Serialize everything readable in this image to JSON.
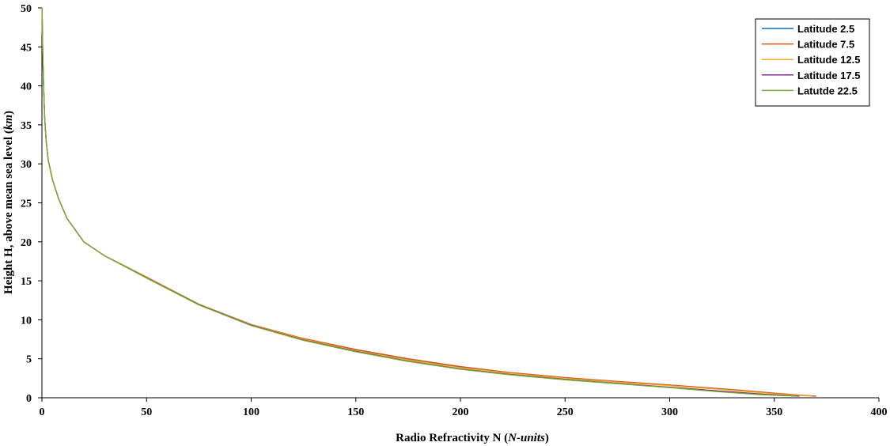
{
  "chart_data": {
    "type": "line",
    "title": "",
    "xlabel": {
      "main": "Radio Refractivity N (",
      "unit": "N-units",
      "close": ")"
    },
    "ylabel": {
      "main": "Height H, above mean sea level (",
      "unit": "km",
      "close": ")"
    },
    "xlim": [
      0,
      400
    ],
    "ylim": [
      0,
      50
    ],
    "xticks": [
      0,
      50,
      100,
      150,
      200,
      250,
      300,
      350,
      400
    ],
    "yticks": [
      0,
      5,
      10,
      15,
      20,
      25,
      30,
      35,
      40,
      45,
      50
    ],
    "grid": false,
    "legend_position": "top-right",
    "series": [
      {
        "name": "Latitude 2.5",
        "color": "#0072BD",
        "points": [
          [
            370,
            0.2
          ],
          [
            352,
            0.5
          ],
          [
            330,
            1.0
          ],
          [
            300,
            1.6
          ],
          [
            275,
            2.0
          ],
          [
            250,
            2.5
          ],
          [
            225,
            3.1
          ],
          [
            200,
            3.9
          ],
          [
            175,
            4.9
          ],
          [
            150,
            6.1
          ],
          [
            125,
            7.5
          ],
          [
            100,
            9.4
          ],
          [
            75,
            12.0
          ],
          [
            50,
            15.5
          ],
          [
            30,
            18.2
          ],
          [
            20,
            20.0
          ],
          [
            12,
            23.0
          ],
          [
            8,
            25.5
          ],
          [
            5,
            28.0
          ],
          [
            3,
            30.5
          ],
          [
            2,
            33.0
          ],
          [
            1.3,
            36.0
          ],
          [
            0.8,
            40.0
          ],
          [
            0.5,
            43.0
          ],
          [
            0.2,
            47.0
          ],
          [
            0.1,
            50.0
          ]
        ]
      },
      {
        "name": "Latitude 7.5",
        "color": "#D95319",
        "points": [
          [
            370,
            0.2
          ],
          [
            352,
            0.55
          ],
          [
            330,
            1.05
          ],
          [
            300,
            1.65
          ],
          [
            275,
            2.1
          ],
          [
            250,
            2.6
          ],
          [
            225,
            3.2
          ],
          [
            200,
            4.0
          ],
          [
            175,
            5.0
          ],
          [
            150,
            6.2
          ],
          [
            125,
            7.6
          ],
          [
            100,
            9.4
          ],
          [
            75,
            12.0
          ],
          [
            50,
            15.5
          ],
          [
            30,
            18.2
          ],
          [
            20,
            20.0
          ],
          [
            12,
            23.0
          ],
          [
            8,
            25.5
          ],
          [
            5,
            28.0
          ],
          [
            3,
            30.5
          ],
          [
            2,
            33.0
          ],
          [
            1.3,
            36.0
          ],
          [
            0.8,
            40.0
          ],
          [
            0.5,
            43.0
          ],
          [
            0.2,
            47.0
          ],
          [
            0.1,
            50.0
          ]
        ]
      },
      {
        "name": "Latitude 12.5",
        "color": "#EDB120",
        "points": [
          [
            368,
            0.2
          ],
          [
            350,
            0.5
          ],
          [
            330,
            0.95
          ],
          [
            300,
            1.55
          ],
          [
            275,
            2.0
          ],
          [
            250,
            2.5
          ],
          [
            225,
            3.1
          ],
          [
            200,
            3.85
          ],
          [
            175,
            4.85
          ],
          [
            150,
            6.05
          ],
          [
            125,
            7.5
          ],
          [
            100,
            9.35
          ],
          [
            75,
            12.0
          ],
          [
            50,
            15.5
          ],
          [
            30,
            18.2
          ],
          [
            20,
            20.0
          ],
          [
            12,
            23.0
          ],
          [
            8,
            25.5
          ],
          [
            5,
            28.0
          ],
          [
            3,
            30.5
          ],
          [
            2,
            33.0
          ],
          [
            1.3,
            36.0
          ],
          [
            0.8,
            40.0
          ],
          [
            0.5,
            43.0
          ],
          [
            0.2,
            47.0
          ],
          [
            0.1,
            50.0
          ]
        ]
      },
      {
        "name": "Latitude 17.5",
        "color": "#7E2F8E",
        "points": [
          [
            362,
            0.2
          ],
          [
            345,
            0.45
          ],
          [
            325,
            0.85
          ],
          [
            300,
            1.35
          ],
          [
            275,
            1.85
          ],
          [
            250,
            2.35
          ],
          [
            225,
            2.95
          ],
          [
            200,
            3.7
          ],
          [
            175,
            4.7
          ],
          [
            150,
            5.95
          ],
          [
            125,
            7.4
          ],
          [
            100,
            9.3
          ],
          [
            75,
            11.95
          ],
          [
            50,
            15.4
          ],
          [
            30,
            18.2
          ],
          [
            20,
            20.0
          ],
          [
            12,
            23.0
          ],
          [
            8,
            25.5
          ],
          [
            5,
            28.0
          ],
          [
            3,
            30.5
          ],
          [
            2,
            33.0
          ],
          [
            1.3,
            36.0
          ],
          [
            0.8,
            40.0
          ],
          [
            0.5,
            43.0
          ],
          [
            0.2,
            47.0
          ],
          [
            0.1,
            50.0
          ]
        ]
      },
      {
        "name": "Latutde 22.5",
        "color": "#77AC30",
        "points": [
          [
            360,
            0.2
          ],
          [
            343,
            0.4
          ],
          [
            322,
            0.8
          ],
          [
            300,
            1.3
          ],
          [
            275,
            1.8
          ],
          [
            250,
            2.3
          ],
          [
            225,
            2.9
          ],
          [
            200,
            3.65
          ],
          [
            175,
            4.65
          ],
          [
            150,
            5.9
          ],
          [
            125,
            7.35
          ],
          [
            100,
            9.25
          ],
          [
            75,
            11.9
          ],
          [
            50,
            15.35
          ],
          [
            30,
            18.2
          ],
          [
            20,
            20.0
          ],
          [
            12,
            23.0
          ],
          [
            8,
            25.5
          ],
          [
            5,
            28.0
          ],
          [
            3,
            30.5
          ],
          [
            2,
            33.0
          ],
          [
            1.3,
            36.0
          ],
          [
            0.8,
            40.0
          ],
          [
            0.5,
            43.0
          ],
          [
            0.2,
            47.0
          ],
          [
            0.1,
            50.0
          ]
        ]
      }
    ]
  }
}
